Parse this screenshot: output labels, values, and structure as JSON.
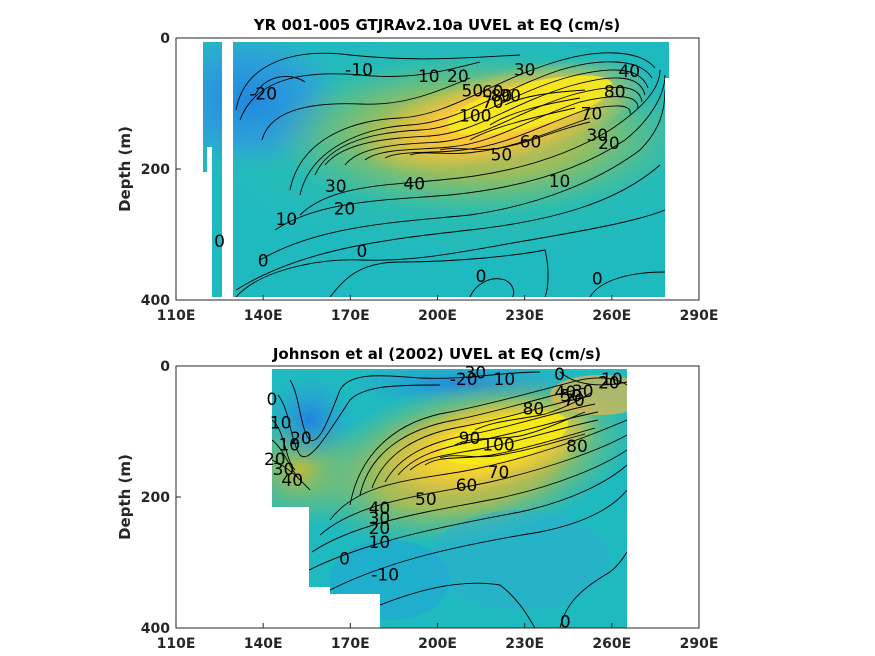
{
  "chart_data": [
    {
      "type": "heatmap",
      "subtype": "filled-contour",
      "title": "YR 001-005 GTJRAv2.10a UVEL at EQ (cm/s)",
      "xlabel": "",
      "ylabel": "Depth (m)",
      "xlim": [
        110,
        290
      ],
      "ylim": [
        400,
        0
      ],
      "x_ticks": [
        "110E",
        "140E",
        "170E",
        "200E",
        "230E",
        "260E",
        "290E"
      ],
      "y_ticks": [
        "0",
        "200",
        "400"
      ],
      "colormap": "parula",
      "contour_labels": [
        {
          "text": "-20",
          "x": 140,
          "depth": 85
        },
        {
          "text": "-10",
          "x": 173,
          "depth": 48
        },
        {
          "text": "10",
          "x": 197,
          "depth": 58
        },
        {
          "text": "20",
          "x": 207,
          "depth": 58
        },
        {
          "text": "30",
          "x": 230,
          "depth": 48
        },
        {
          "text": "40",
          "x": 266,
          "depth": 50
        },
        {
          "text": "50",
          "x": 212,
          "depth": 80
        },
        {
          "text": "60",
          "x": 219,
          "depth": 82
        },
        {
          "text": "70",
          "x": 219,
          "depth": 98
        },
        {
          "text": "80",
          "x": 222,
          "depth": 88
        },
        {
          "text": "90",
          "x": 225,
          "depth": 88
        },
        {
          "text": "100",
          "x": 213,
          "depth": 118
        },
        {
          "text": "80",
          "x": 261,
          "depth": 82
        },
        {
          "text": "70",
          "x": 253,
          "depth": 115
        },
        {
          "text": "60",
          "x": 232,
          "depth": 158
        },
        {
          "text": "50",
          "x": 222,
          "depth": 178
        },
        {
          "text": "30",
          "x": 255,
          "depth": 148
        },
        {
          "text": "20",
          "x": 259,
          "depth": 160
        },
        {
          "text": "10",
          "x": 242,
          "depth": 218
        },
        {
          "text": "40",
          "x": 192,
          "depth": 222
        },
        {
          "text": "30",
          "x": 165,
          "depth": 226
        },
        {
          "text": "20",
          "x": 168,
          "depth": 260
        },
        {
          "text": "10",
          "x": 148,
          "depth": 276
        },
        {
          "text": "0",
          "x": 125,
          "depth": 310
        },
        {
          "text": "0",
          "x": 140,
          "depth": 340
        },
        {
          "text": "0",
          "x": 174,
          "depth": 325
        },
        {
          "text": "0",
          "x": 215,
          "depth": 363
        },
        {
          "text": "0",
          "x": 255,
          "depth": 367
        }
      ]
    },
    {
      "type": "heatmap",
      "subtype": "filled-contour",
      "title": "Johnson et al (2002) UVEL at EQ (cm/s)",
      "xlabel": "",
      "ylabel": "Depth (m)",
      "xlim": [
        110,
        290
      ],
      "ylim": [
        400,
        0
      ],
      "x_ticks": [
        "110E",
        "140E",
        "170E",
        "200E",
        "230E",
        "260E",
        "290E"
      ],
      "y_ticks": [
        "0",
        "200",
        "400"
      ],
      "colormap": "parula",
      "contour_labels": [
        {
          "text": "-30",
          "x": 212,
          "depth": 10
        },
        {
          "text": "-20",
          "x": 209,
          "depth": 20
        },
        {
          "text": "10",
          "x": 223,
          "depth": 20
        },
        {
          "text": "0",
          "x": 242,
          "depth": 12
        },
        {
          "text": "10",
          "x": 260,
          "depth": 20
        },
        {
          "text": "20",
          "x": 259,
          "depth": 25
        },
        {
          "text": "30",
          "x": 250,
          "depth": 38
        },
        {
          "text": "40",
          "x": 244,
          "depth": 40
        },
        {
          "text": "50",
          "x": 246,
          "depth": 45
        },
        {
          "text": "70",
          "x": 247,
          "depth": 52
        },
        {
          "text": "80",
          "x": 233,
          "depth": 65
        },
        {
          "text": "0",
          "x": 143,
          "depth": 50
        },
        {
          "text": "10",
          "x": 146,
          "depth": 86
        },
        {
          "text": "20",
          "x": 153,
          "depth": 110
        },
        {
          "text": "10",
          "x": 149,
          "depth": 120
        },
        {
          "text": "20",
          "x": 144,
          "depth": 142
        },
        {
          "text": "30",
          "x": 147,
          "depth": 157
        },
        {
          "text": "40",
          "x": 150,
          "depth": 174
        },
        {
          "text": "90",
          "x": 211,
          "depth": 110
        },
        {
          "text": "100",
          "x": 221,
          "depth": 120
        },
        {
          "text": "80",
          "x": 248,
          "depth": 122
        },
        {
          "text": "70",
          "x": 221,
          "depth": 162
        },
        {
          "text": "60",
          "x": 210,
          "depth": 182
        },
        {
          "text": "50",
          "x": 196,
          "depth": 203
        },
        {
          "text": "40",
          "x": 180,
          "depth": 217
        },
        {
          "text": "30",
          "x": 180,
          "depth": 232
        },
        {
          "text": "20",
          "x": 180,
          "depth": 247
        },
        {
          "text": "10",
          "x": 180,
          "depth": 269
        },
        {
          "text": "0",
          "x": 168,
          "depth": 294
        },
        {
          "text": "-10",
          "x": 182,
          "depth": 318
        },
        {
          "text": "0",
          "x": 244,
          "depth": 390
        }
      ]
    }
  ]
}
